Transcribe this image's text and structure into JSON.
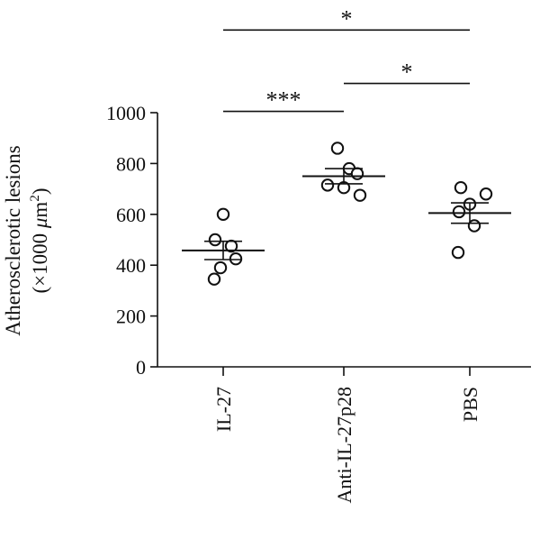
{
  "chart_data": {
    "type": "scatter",
    "title": "",
    "ylabel_line1": "Atherosclerotic lesions",
    "ylabel_line2_prefix": "(×1000 ",
    "ylabel_unit_mu": "μ",
    "ylabel_unit_m": "m",
    "ylabel_unit_exp": "2",
    "ylabel_line2_suffix": ")",
    "ylim": [
      0,
      1000
    ],
    "yticks": [
      0,
      200,
      400,
      600,
      800,
      1000
    ],
    "ytick_labels": [
      "0",
      "200",
      "400",
      "600",
      "800",
      "1000"
    ],
    "categories": [
      "IL-27",
      "Anti-IL-27p28",
      "PBS"
    ],
    "groups": [
      {
        "category": "IL-27",
        "points": [
          600,
          500,
          475,
          425,
          390,
          345
        ],
        "mean": 458,
        "error": [
          422,
          494
        ]
      },
      {
        "category": "Anti-IL-27p28",
        "points": [
          860,
          780,
          760,
          715,
          705,
          675
        ],
        "mean": 750,
        "error": [
          720,
          780
        ]
      },
      {
        "category": "PBS",
        "points": [
          705,
          680,
          640,
          610,
          555,
          450
        ],
        "mean": 605,
        "error": [
          565,
          645
        ]
      }
    ],
    "significance": [
      {
        "from": 0,
        "to": 2,
        "label": "*",
        "y_value": 1325
      },
      {
        "from": 1,
        "to": 2,
        "label": "*",
        "y_value": 1115
      },
      {
        "from": 0,
        "to": 1,
        "label": "***",
        "y_value": 1005
      }
    ]
  }
}
